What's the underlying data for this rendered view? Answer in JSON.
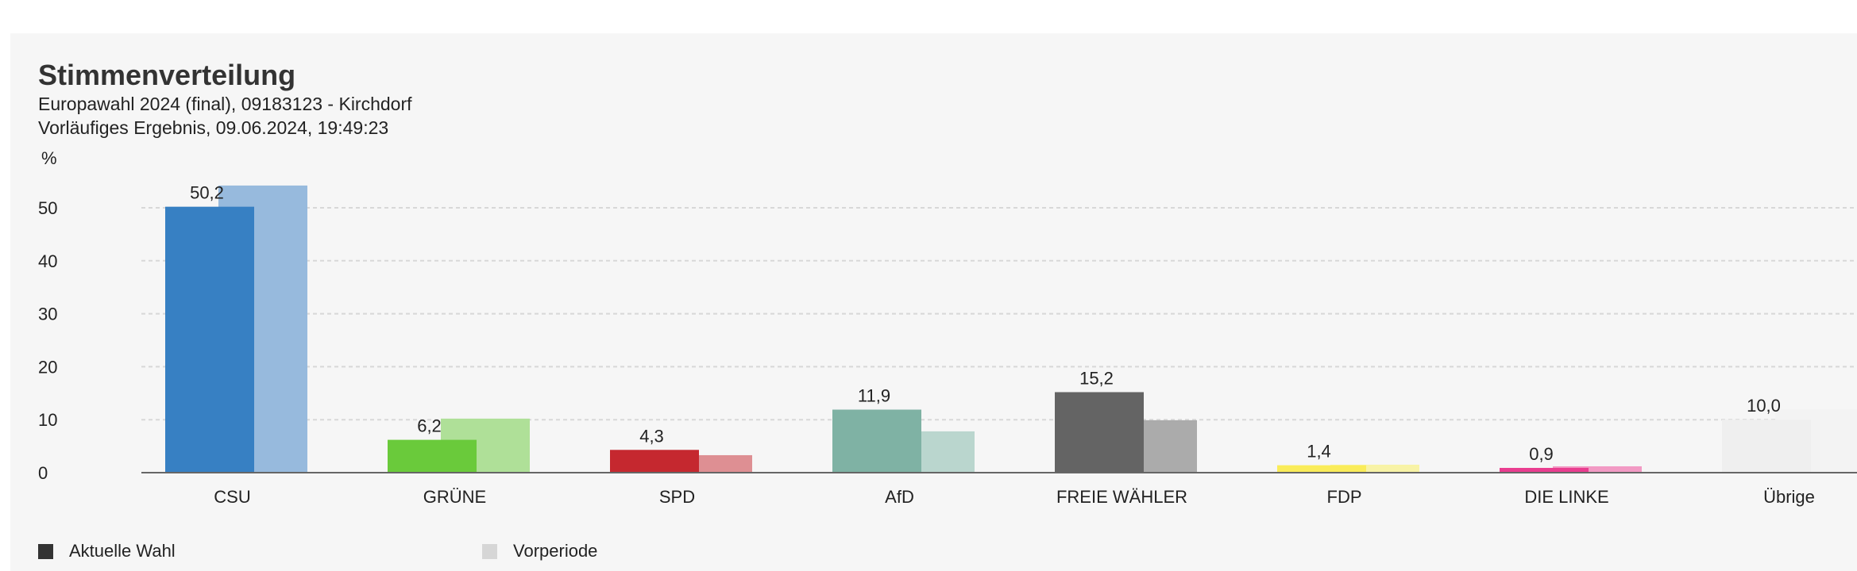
{
  "header": {
    "title": "Stimmenverteilung",
    "subtitle": "Europawahl 2024 (final), 09183123 - Kirchdorf",
    "status": "Vorläufiges Ergebnis, 09.06.2024, 19:49:23"
  },
  "chart_data": {
    "type": "bar",
    "title": "Stimmenverteilung",
    "ylabel": "%",
    "ylim": [
      0,
      55
    ],
    "yticks": [
      0,
      10,
      20,
      30,
      40,
      50
    ],
    "grid": true,
    "legend_position": "bottom-left",
    "categories": [
      "CSU",
      "GRÜNE",
      "SPD",
      "AfD",
      "FREIE WÄHLER",
      "FDP",
      "DIE LINKE",
      "Übrige"
    ],
    "colors_current": [
      "#3780c3",
      "#6aca3b",
      "#c5282f",
      "#7fb2a4",
      "#646464",
      "#faec59",
      "#e93d8f",
      "#efefef"
    ],
    "colors_previous": [
      "#97badd",
      "#afe098",
      "#de8f93",
      "#bad6ce",
      "#ababab",
      "#f8f3a6",
      "#f29ac4",
      "#f3f3f3"
    ],
    "series": [
      {
        "name": "Aktuelle Wahl",
        "values": [
          50.2,
          6.2,
          4.3,
          11.9,
          15.2,
          1.4,
          0.9,
          10.0
        ],
        "labels": [
          "50,2",
          "6,2",
          "4,3",
          "11,9",
          "15,2",
          "1,4",
          "0,9",
          "10,0"
        ]
      },
      {
        "name": "Vorperiode",
        "values": [
          54.2,
          10.2,
          3.3,
          7.8,
          9.9,
          1.5,
          1.2,
          12.0
        ]
      }
    ]
  },
  "legend": {
    "current": {
      "label": "Aktuelle Wahl",
      "color": "#333333"
    },
    "previous": {
      "label": "Vorperiode",
      "color": "#d6d6d6"
    }
  }
}
